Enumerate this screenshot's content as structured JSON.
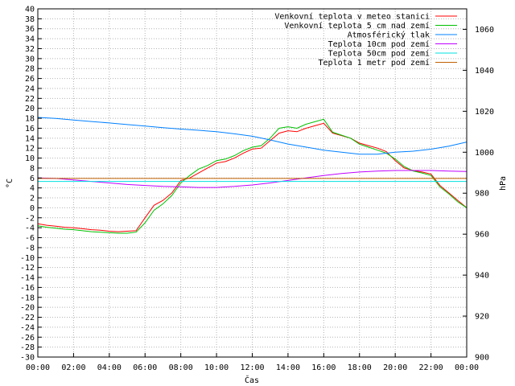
{
  "chart_data": {
    "type": "line",
    "xlabel": "Čas",
    "ylabel": "°C",
    "y2label": "hPa",
    "x_ticks": [
      "00:00",
      "02:00",
      "04:00",
      "06:00",
      "08:00",
      "10:00",
      "12:00",
      "14:00",
      "16:00",
      "18:00",
      "20:00",
      "22:00",
      "00:00"
    ],
    "xlim": [
      0,
      24
    ],
    "ylim": [
      -30,
      40
    ],
    "y_ticks": [
      40,
      38,
      36,
      34,
      32,
      30,
      28,
      26,
      24,
      22,
      20,
      18,
      16,
      14,
      12,
      10,
      8,
      6,
      4,
      2,
      0,
      -2,
      -4,
      -6,
      -8,
      -10,
      -12,
      -14,
      -16,
      -18,
      -20,
      -22,
      -24,
      -26,
      -28,
      -30
    ],
    "y2lim": [
      900,
      1070
    ],
    "y2_ticks": [
      1060,
      1040,
      1020,
      1000,
      980,
      960,
      940,
      920,
      900
    ],
    "grid": true,
    "legend_position": "top-right",
    "series": [
      {
        "name": "Venkovní teplota v meteo stanici",
        "color": "#ff0000",
        "axis": "y",
        "x": [
          0,
          0.5,
          1,
          1.5,
          2,
          2.5,
          3,
          3.5,
          4,
          4.5,
          5,
          5.5,
          6,
          6.5,
          7,
          7.5,
          8,
          8.5,
          9,
          9.5,
          10,
          10.5,
          11,
          11.5,
          12,
          12.5,
          13,
          13.5,
          14,
          14.5,
          15,
          15.5,
          16,
          16.5,
          17,
          17.5,
          18,
          18.5,
          19,
          19.5,
          20,
          20.5,
          21,
          21.5,
          22,
          22.5,
          23,
          23.5,
          24
        ],
        "y": [
          -3.2,
          -3.5,
          -3.7,
          -3.9,
          -4.0,
          -4.2,
          -4.4,
          -4.5,
          -4.7,
          -4.8,
          -4.7,
          -4.6,
          -2.0,
          0.5,
          1.5,
          3.0,
          5.5,
          6.0,
          7.0,
          8.0,
          9.0,
          9.3,
          10.0,
          11.0,
          11.8,
          12.0,
          13.5,
          15.0,
          15.5,
          15.3,
          16.0,
          16.5,
          17.0,
          15.0,
          14.5,
          14.0,
          13.0,
          12.5,
          12.0,
          11.3,
          9.5,
          8.0,
          7.5,
          7.2,
          6.8,
          4.5,
          3.0,
          1.5,
          0.0
        ]
      },
      {
        "name": "Venkovní teplota 5 cm nad zemí",
        "color": "#00c000",
        "axis": "y",
        "x": [
          0,
          0.5,
          1,
          1.5,
          2,
          2.5,
          3,
          3.5,
          4,
          4.5,
          5,
          5.5,
          6,
          6.5,
          7,
          7.5,
          8,
          8.5,
          9,
          9.5,
          10,
          10.5,
          11,
          11.5,
          12,
          12.5,
          13,
          13.5,
          14,
          14.5,
          15,
          15.5,
          16,
          16.5,
          17,
          17.5,
          18,
          18.5,
          19,
          19.5,
          20,
          20.5,
          21,
          21.5,
          22,
          22.5,
          23,
          23.5,
          24
        ],
        "y": [
          -3.6,
          -3.9,
          -4.1,
          -4.3,
          -4.4,
          -4.6,
          -4.8,
          -4.9,
          -5.0,
          -5.1,
          -5.1,
          -4.9,
          -3.0,
          -0.5,
          0.8,
          2.5,
          5.0,
          6.5,
          7.8,
          8.5,
          9.5,
          9.8,
          10.5,
          11.5,
          12.2,
          12.5,
          14.0,
          16.0,
          16.3,
          16.0,
          16.8,
          17.3,
          17.8,
          15.2,
          14.6,
          14.0,
          12.8,
          12.2,
          11.6,
          11.0,
          9.8,
          8.3,
          7.4,
          7.0,
          6.5,
          4.2,
          2.8,
          1.2,
          0.0
        ]
      },
      {
        "name": "Atmosférický tlak",
        "color": "#0080ff",
        "axis": "y2",
        "x": [
          0,
          1,
          2,
          3,
          4,
          5,
          6,
          7,
          8,
          9,
          10,
          11,
          12,
          13,
          14,
          15,
          16,
          17,
          18,
          19,
          20,
          21,
          22,
          23,
          24
        ],
        "y": [
          1017,
          1016.5,
          1015.7,
          1015,
          1014.3,
          1013.5,
          1012.8,
          1012,
          1011.3,
          1010.7,
          1010,
          1009,
          1007.8,
          1006,
          1004,
          1002.5,
          1001,
          1000,
          999,
          999,
          1000,
          1000.5,
          1001.5,
          1003,
          1005
        ]
      },
      {
        "name": "Teplota 10cm pod zemí",
        "color": "#c000ff",
        "axis": "y",
        "x": [
          0,
          1,
          2,
          3,
          4,
          5,
          6,
          7,
          8,
          9,
          10,
          11,
          12,
          13,
          14,
          15,
          16,
          17,
          18,
          19,
          20,
          21,
          22,
          23,
          24
        ],
        "y": [
          6.0,
          5.9,
          5.6,
          5.3,
          5.0,
          4.7,
          4.5,
          4.3,
          4.2,
          4.1,
          4.1,
          4.3,
          4.6,
          5.0,
          5.5,
          6.0,
          6.5,
          6.9,
          7.2,
          7.4,
          7.5,
          7.5,
          7.5,
          7.4,
          7.3
        ]
      },
      {
        "name": "Teplota 50cm pod zemí",
        "color": "#00e0e0",
        "axis": "y",
        "x": [
          0,
          2,
          4,
          6,
          8,
          10,
          12,
          14,
          16,
          18,
          20,
          22,
          24
        ],
        "y": [
          5.3,
          5.3,
          5.3,
          5.3,
          5.3,
          5.3,
          5.3,
          5.3,
          5.3,
          5.3,
          5.3,
          5.3,
          5.3
        ]
      },
      {
        "name": "Teplota 1 metr pod zemí",
        "color": "#c06000",
        "axis": "y",
        "x": [
          0,
          24
        ],
        "y": [
          5.9,
          5.9
        ]
      }
    ]
  }
}
